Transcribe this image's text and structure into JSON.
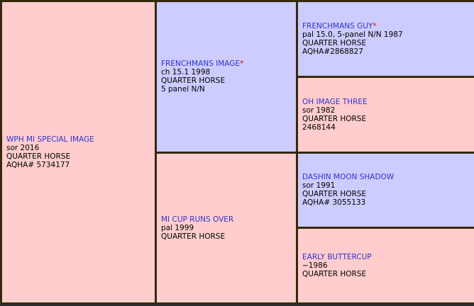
{
  "colors": {
    "pink": "#ffcdcd",
    "lavender": "#ccccff",
    "border": "#34290a",
    "link_blue": "#3333cc",
    "star_red": "#e60000"
  },
  "pedigree": {
    "subject": {
      "name": "WPH MI SPECIAL IMAGE",
      "star": "",
      "details": [
        "sor 2016",
        "QUARTER HORSE",
        "AQHA# 5734177"
      ]
    },
    "sire": {
      "name": "FRENCHMANS IMAGE",
      "star": "*",
      "details": [
        "ch 15.1 1998",
        "QUARTER HORSE",
        "5 panel N/N"
      ]
    },
    "dam": {
      "name": "MI CUP RUNS OVER",
      "star": "",
      "details": [
        "pal 1999",
        "QUARTER HORSE"
      ]
    },
    "sire_sire": {
      "name": "FRENCHMANS GUY",
      "star": "*",
      "details": [
        "pal 15.0, 5-panel N/N 1987",
        "QUARTER HORSE",
        "AQHA#2868827"
      ]
    },
    "sire_dam": {
      "name": "OH IMAGE THREE",
      "star": "",
      "details": [
        "sor 1982",
        "QUARTER HORSE",
        "2468144"
      ]
    },
    "dam_sire": {
      "name": "DASHIN MOON SHADOW",
      "star": "",
      "details": [
        "sor 1991",
        "QUARTER HORSE",
        "AQHA# 3055133"
      ]
    },
    "dam_dam": {
      "name": "EARLY BUTTERCUP",
      "star": "",
      "details": [
        "~1986",
        "QUARTER HORSE"
      ]
    }
  }
}
